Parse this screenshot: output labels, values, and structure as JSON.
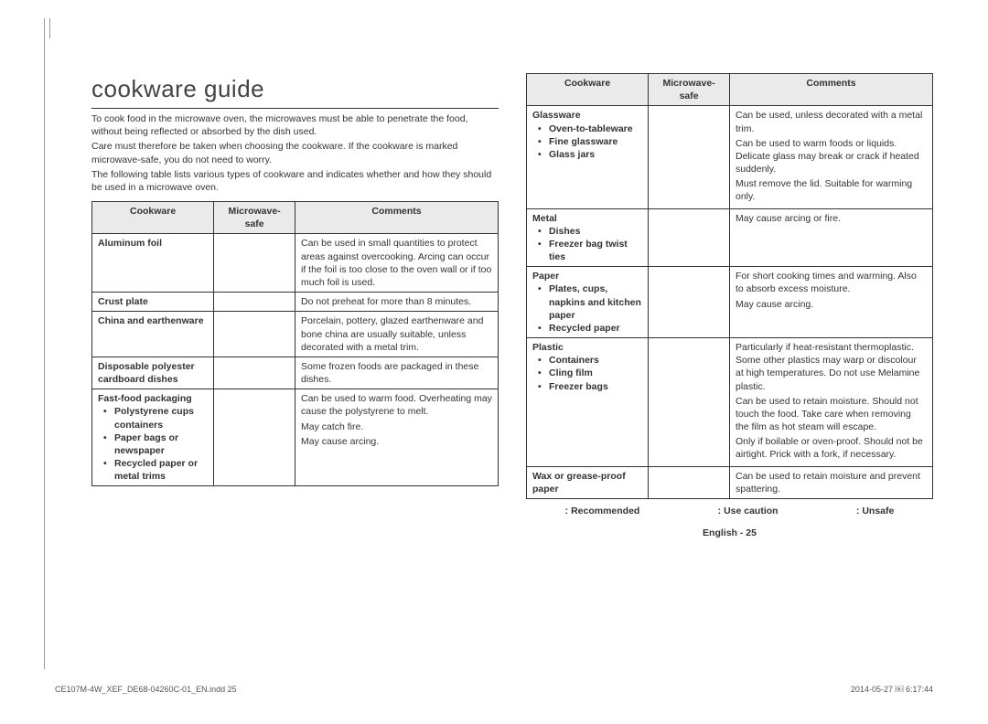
{
  "title": "cookware guide",
  "intro": {
    "p1": "To cook food in the microwave oven, the microwaves must be able to penetrate the food, without being reflected or absorbed by the dish used.",
    "p2": "Care must therefore be taken when choosing the cookware. If the cookware is marked microwave-safe, you do not need to worry.",
    "p3": "The following table lists various types of cookware and indicates whether and how they should be used in a microwave oven."
  },
  "headers": {
    "c1": "Cookware",
    "c2": "Microwave-safe",
    "c3": "Comments"
  },
  "left_rows": [
    {
      "name": "Aluminum foil",
      "comment": "Can be used in small quantities to protect areas against overcooking. Arcing can occur if the foil is too close to the oven wall or if too much foil is used."
    },
    {
      "name": "Crust plate",
      "comment": "Do not preheat for more than 8 minutes."
    },
    {
      "name": "China and earthenware",
      "comment": "Porcelain, pottery, glazed earthenware and bone china are usually suitable, unless decorated with a metal trim."
    },
    {
      "name": "Disposable polyester cardboard dishes",
      "comment": "Some frozen foods are packaged in these dishes."
    },
    {
      "name": "Fast-food packaging",
      "subitems": [
        {
          "n": "Polystyrene cups containers",
          "c": "Can be used to warm food. Overheating may cause the polystyrene to melt."
        },
        {
          "n": "Paper bags or newspaper",
          "c": "May catch fire."
        },
        {
          "n": "Recycled paper or metal trims",
          "c": "May cause arcing."
        }
      ]
    }
  ],
  "right_rows": [
    {
      "name": "Glassware",
      "subitems": [
        {
          "n": "Oven-to-tableware",
          "c": "Can be used, unless decorated with a metal trim."
        },
        {
          "n": "Fine glassware",
          "c": "Can be used to warm foods or liquids. Delicate glass may break or crack if heated suddenly."
        },
        {
          "n": "Glass jars",
          "c": "Must remove the lid. Suitable for warming only."
        }
      ]
    },
    {
      "name": "Metal",
      "subitems": [
        {
          "n": "Dishes",
          "c": "May cause arcing or fire."
        },
        {
          "n": "Freezer bag twist ties",
          "c": ""
        }
      ]
    },
    {
      "name": "Paper",
      "subitems": [
        {
          "n": "Plates, cups, napkins and kitchen paper",
          "c": "For short cooking times and warming. Also to absorb excess moisture."
        },
        {
          "n": "Recycled paper",
          "c": "May cause arcing."
        }
      ]
    },
    {
      "name": "Plastic",
      "subitems": [
        {
          "n": "Containers",
          "c": "Particularly if heat-resistant thermoplastic. Some other plastics may warp or discolour at high temperatures. Do not use Melamine plastic."
        },
        {
          "n": "Cling film",
          "c": "Can be used to retain moisture. Should not touch the food. Take care when removing the film as hot steam will escape."
        },
        {
          "n": "Freezer bags",
          "c": "Only if boilable or oven-proof. Should not be airtight. Prick with a fork, if necessary."
        }
      ]
    },
    {
      "name": "Wax or grease-proof paper",
      "comment": "Can be used to retain moisture and prevent spattering."
    }
  ],
  "legend": {
    "a": ": Recommended",
    "b": ": Use caution",
    "c": ": Unsafe"
  },
  "page_num": "English - 25",
  "footer": {
    "left": "CE107M-4W_XEF_DE68-04260C-01_EN.indd   25",
    "right": "2014-05-27   ￼ 6:17:44"
  }
}
